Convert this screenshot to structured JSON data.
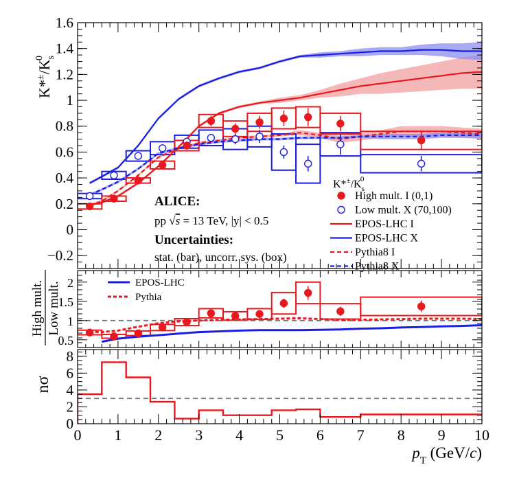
{
  "colors": {
    "red": "#e8191e",
    "blue": "#1a1ee0",
    "red_band": "#f2a0a0",
    "blue_band": "#8c8cf0",
    "dashed_ref": "#777777"
  },
  "chart_data": [
    {
      "type": "scatter",
      "panel": "top",
      "ylabel_main": "K*",
      "ylabel_sup": "±",
      "ylabel_slash": "/K",
      "ylabel_sub": "s",
      "ylabel_sup2": "0",
      "xlim": [
        0,
        10
      ],
      "ylim": [
        -0.3,
        1.6
      ],
      "y_ticks": [
        -0.2,
        0,
        0.2,
        0.4,
        0.6,
        0.8,
        1,
        1.2,
        1.4,
        1.6
      ],
      "y_tick_labels": [
        "−0.2",
        "0",
        "0.2",
        "0.4",
        "0.6",
        "0.8",
        "1",
        "1.2",
        "1.4",
        "1.6"
      ],
      "annotations": {
        "alice": "ALICE:",
        "energy_prefix": "pp ",
        "energy_s": "s",
        "energy_suffix": " = 13 TeV, |y| < 0.5",
        "uncert_title": "Uncertainties:",
        "uncert_text": "stat. (bar), uncorr. sys. (box)"
      },
      "legend": {
        "position": "center-right",
        "header_main": "K*",
        "header_sup": "±",
        "header_slash": "/K",
        "header_sub": "s",
        "header_sup2": "0",
        "entries": [
          {
            "label": "High mult. I (0,1)",
            "kind": "marker-filled",
            "color": "red"
          },
          {
            "label": "Low mult. X (70,100)",
            "kind": "marker-open",
            "color": "blue"
          },
          {
            "label": "EPOS-LHC I",
            "kind": "solid",
            "color": "red"
          },
          {
            "label": "EPOS-LHC X",
            "kind": "solid",
            "color": "blue"
          },
          {
            "label": "Pythia8 I",
            "kind": "dashed",
            "color": "red"
          },
          {
            "label": "Pythia8 X",
            "kind": "dashed",
            "color": "blue"
          }
        ]
      },
      "series": [
        {
          "name": "High mult. I (0,1)",
          "color": "red",
          "bins": [
            [
              0,
              0.6
            ],
            [
              0.6,
              1.2
            ],
            [
              1.2,
              1.8
            ],
            [
              1.8,
              2.4
            ],
            [
              2.4,
              3.0
            ],
            [
              3.0,
              3.6
            ],
            [
              3.6,
              4.2
            ],
            [
              4.2,
              4.8
            ],
            [
              4.8,
              5.4
            ],
            [
              5.4,
              6.0
            ],
            [
              6.0,
              7.0
            ],
            [
              7.0,
              10.0
            ]
          ],
          "x": [
            0.3,
            0.9,
            1.5,
            2.1,
            2.7,
            3.3,
            3.9,
            4.5,
            5.1,
            5.7,
            6.5,
            8.5
          ],
          "y": [
            0.18,
            0.24,
            0.38,
            0.5,
            0.65,
            0.84,
            0.78,
            0.83,
            0.86,
            0.87,
            0.82,
            0.69
          ],
          "stat": [
            0.01,
            0.01,
            0.01,
            0.02,
            0.03,
            0.04,
            0.04,
            0.05,
            0.06,
            0.07,
            0.06,
            0.07
          ],
          "sys": [
            0.02,
            0.02,
            0.02,
            0.03,
            0.04,
            0.05,
            0.06,
            0.07,
            0.08,
            0.08,
            0.08,
            0.07
          ]
        },
        {
          "name": "Low mult. X (70,100)",
          "color": "blue",
          "bins": [
            [
              0,
              0.6
            ],
            [
              0.6,
              1.2
            ],
            [
              1.2,
              1.8
            ],
            [
              1.8,
              2.4
            ],
            [
              2.4,
              3.0
            ],
            [
              3.0,
              3.6
            ],
            [
              3.6,
              4.2
            ],
            [
              4.2,
              4.8
            ],
            [
              4.8,
              5.4
            ],
            [
              5.4,
              6.0
            ],
            [
              6.0,
              7.0
            ],
            [
              7.0,
              10.0
            ]
          ],
          "x": [
            0.3,
            0.9,
            1.5,
            2.1,
            2.7,
            3.3,
            3.9,
            4.5,
            5.1,
            5.7,
            6.5,
            8.5
          ],
          "y": [
            0.26,
            0.42,
            0.57,
            0.63,
            0.68,
            0.71,
            0.7,
            0.72,
            0.6,
            0.51,
            0.66,
            0.51
          ],
          "stat": [
            0.01,
            0.02,
            0.02,
            0.02,
            0.03,
            0.03,
            0.04,
            0.05,
            0.05,
            0.06,
            0.08,
            0.06
          ],
          "sys": [
            0.02,
            0.03,
            0.04,
            0.05,
            0.05,
            0.06,
            0.08,
            0.08,
            0.14,
            0.15,
            0.09,
            0.07
          ]
        },
        {
          "name": "EPOS-LHC I",
          "color": "red",
          "style": "solid",
          "x": [
            0.3,
            0.6,
            1.0,
            1.5,
            2.0,
            2.5,
            3.0,
            3.5,
            4.0,
            4.5,
            5.0,
            5.5,
            6.0,
            6.5,
            7.0,
            7.5,
            8.0,
            8.5,
            9.0,
            9.5,
            10.0
          ],
          "y": [
            0.19,
            0.21,
            0.26,
            0.36,
            0.49,
            0.64,
            0.8,
            0.9,
            0.95,
            0.98,
            1.0,
            1.02,
            1.05,
            1.08,
            1.11,
            1.13,
            1.15,
            1.17,
            1.19,
            1.21,
            1.22
          ],
          "band": [
            0.01,
            0.01,
            0.01,
            0.01,
            0.01,
            0.01,
            0.01,
            0.01,
            0.01,
            0.01,
            0.02,
            0.02,
            0.03,
            0.05,
            0.06,
            0.08,
            0.09,
            0.1,
            0.11,
            0.12,
            0.13
          ]
        },
        {
          "name": "EPOS-LHC X",
          "color": "blue",
          "style": "solid",
          "x": [
            0.3,
            0.6,
            1.0,
            1.5,
            2.0,
            2.5,
            3.0,
            3.5,
            4.0,
            4.5,
            5.0,
            5.5,
            6.0,
            6.5,
            7.0,
            7.5,
            8.0,
            8.5,
            9.0,
            9.5,
            10.0
          ],
          "y": [
            0.36,
            0.41,
            0.48,
            0.65,
            0.86,
            1.01,
            1.11,
            1.17,
            1.22,
            1.25,
            1.3,
            1.34,
            1.35,
            1.36,
            1.37,
            1.38,
            1.38,
            1.39,
            1.39,
            1.38,
            1.38
          ],
          "band": [
            0.01,
            0.01,
            0.01,
            0.01,
            0.01,
            0.01,
            0.01,
            0.01,
            0.01,
            0.01,
            0.01,
            0.01,
            0.02,
            0.02,
            0.03,
            0.03,
            0.03,
            0.04,
            0.05,
            0.06,
            0.07
          ]
        },
        {
          "name": "Pythia8 I",
          "color": "red",
          "style": "dashed",
          "x": [
            0.3,
            0.6,
            1.0,
            1.5,
            2.0,
            2.5,
            3.0,
            3.5,
            4.0,
            4.5,
            5.0,
            5.5,
            6.0,
            6.5,
            7.0,
            7.5,
            8.0,
            8.5,
            9.0,
            9.5,
            10.0
          ],
          "y": [
            0.19,
            0.22,
            0.3,
            0.42,
            0.56,
            0.63,
            0.67,
            0.69,
            0.71,
            0.72,
            0.73,
            0.75,
            0.73,
            0.7,
            0.72,
            0.74,
            0.76,
            0.76,
            0.76,
            0.75,
            0.74
          ],
          "band": [
            0.01,
            0.01,
            0.01,
            0.01,
            0.01,
            0.01,
            0.01,
            0.01,
            0.01,
            0.01,
            0.01,
            0.02,
            0.02,
            0.03,
            0.03,
            0.03,
            0.04,
            0.04,
            0.04,
            0.04,
            0.04
          ]
        },
        {
          "name": "Pythia8 X",
          "color": "blue",
          "style": "dashed",
          "x": [
            0.3,
            0.6,
            1.0,
            1.5,
            2.0,
            2.5,
            3.0,
            3.5,
            4.0,
            4.5,
            5.0,
            5.5,
            6.0,
            6.5,
            7.0,
            7.5,
            8.0,
            8.5,
            9.0,
            9.5,
            10.0
          ],
          "y": [
            0.27,
            0.31,
            0.37,
            0.47,
            0.59,
            0.63,
            0.66,
            0.68,
            0.69,
            0.7,
            0.7,
            0.71,
            0.71,
            0.71,
            0.72,
            0.72,
            0.72,
            0.72,
            0.73,
            0.73,
            0.73
          ],
          "band": [
            0.01,
            0.01,
            0.01,
            0.01,
            0.01,
            0.01,
            0.01,
            0.01,
            0.01,
            0.01,
            0.01,
            0.01,
            0.01,
            0.01,
            0.01,
            0.02,
            0.02,
            0.02,
            0.02,
            0.02,
            0.02
          ]
        }
      ]
    },
    {
      "type": "scatter",
      "panel": "middle",
      "ylabel_top": "High mult.",
      "ylabel_bottom": "Low mult.",
      "xlim": [
        0,
        10
      ],
      "ylim": [
        0.3,
        2.3
      ],
      "y_ticks": [
        0.5,
        1,
        1.5,
        2
      ],
      "y_tick_labels": [
        "0.5",
        "1",
        "1.5",
        "2"
      ],
      "reference_line": 1,
      "legend": {
        "position": "top-left",
        "entries": [
          {
            "label": "EPOS-LHC",
            "kind": "solid",
            "color": "blue"
          },
          {
            "label": "Pythia",
            "kind": "dashed",
            "color": "red"
          }
        ]
      },
      "series": [
        {
          "name": "Data ratio",
          "color": "red",
          "bins": [
            [
              0,
              0.6
            ],
            [
              0.6,
              1.2
            ],
            [
              1.2,
              1.8
            ],
            [
              1.8,
              2.4
            ],
            [
              2.4,
              3.0
            ],
            [
              3.0,
              3.6
            ],
            [
              3.6,
              4.2
            ],
            [
              4.2,
              4.8
            ],
            [
              4.8,
              5.4
            ],
            [
              5.4,
              6.0
            ],
            [
              6.0,
              7.0
            ],
            [
              7.0,
              10.0
            ]
          ],
          "x": [
            0.3,
            0.9,
            1.5,
            2.1,
            2.7,
            3.3,
            3.9,
            4.5,
            5.1,
            5.7,
            6.5,
            8.5
          ],
          "y": [
            0.69,
            0.59,
            0.67,
            0.82,
            0.96,
            1.19,
            1.12,
            1.17,
            1.45,
            1.72,
            1.24,
            1.37
          ],
          "stat": [
            0.02,
            0.02,
            0.02,
            0.03,
            0.04,
            0.06,
            0.07,
            0.08,
            0.12,
            0.18,
            0.12,
            0.15
          ],
          "sys": [
            0.06,
            0.05,
            0.06,
            0.08,
            0.09,
            0.12,
            0.11,
            0.14,
            0.28,
            0.28,
            0.2,
            0.24
          ]
        },
        {
          "name": "EPOS-LHC",
          "color": "blue",
          "style": "solid",
          "x": [
            0.6,
            1.0,
            1.5,
            2.0,
            2.5,
            3.0,
            3.5,
            4.0,
            4.5,
            5.0,
            5.5,
            6.0,
            6.5,
            7.0,
            7.5,
            8.0,
            8.5,
            9.0,
            9.5,
            10.0
          ],
          "y": [
            0.45,
            0.53,
            0.58,
            0.62,
            0.66,
            0.7,
            0.72,
            0.74,
            0.75,
            0.75,
            0.75,
            0.76,
            0.77,
            0.79,
            0.8,
            0.82,
            0.83,
            0.85,
            0.86,
            0.88
          ]
        },
        {
          "name": "Pythia",
          "color": "red",
          "style": "dashed",
          "x": [
            0.3,
            0.6,
            1.0,
            1.5,
            2.0,
            2.5,
            3.0,
            3.5,
            4.0,
            4.5,
            5.0,
            5.5,
            6.0,
            6.5,
            7.0,
            7.5,
            8.0,
            8.5,
            9.0,
            9.5,
            10.0
          ],
          "y": [
            0.71,
            0.7,
            0.74,
            0.84,
            0.93,
            0.98,
            1.0,
            1.02,
            1.03,
            1.04,
            1.05,
            1.06,
            1.04,
            1.02,
            1.02,
            1.03,
            1.04,
            1.05,
            1.05,
            1.05,
            1.04
          ]
        }
      ]
    },
    {
      "type": "bar",
      "panel": "bottom",
      "ylabel_n": "n",
      "ylabel_sigma": "σ",
      "xlim": [
        0,
        10
      ],
      "ylim": [
        0,
        8.8
      ],
      "y_ticks": [
        0,
        2,
        4,
        6,
        8
      ],
      "y_tick_labels": [
        "0",
        "2",
        "4",
        "6",
        "8"
      ],
      "x_ticks": [
        0,
        1,
        2,
        3,
        4,
        5,
        6,
        7,
        8,
        9,
        10
      ],
      "x_tick_labels": [
        "0",
        "1",
        "2",
        "3",
        "4",
        "5",
        "6",
        "7",
        "8",
        "9",
        "10"
      ],
      "xlabel_p": "p",
      "xlabel_sub": "T",
      "xlabel_unit_open": " (GeV/",
      "xlabel_c": "c",
      "xlabel_unit_close": ")",
      "reference_line": 3,
      "bins": [
        [
          0,
          0.6
        ],
        [
          0.6,
          1.2
        ],
        [
          1.2,
          1.8
        ],
        [
          1.8,
          2.4
        ],
        [
          2.4,
          3.0
        ],
        [
          3.0,
          3.6
        ],
        [
          3.6,
          4.2
        ],
        [
          4.2,
          4.8
        ],
        [
          4.8,
          5.4
        ],
        [
          5.4,
          6.0
        ],
        [
          6.0,
          7.0
        ],
        [
          7.0,
          10.0
        ]
      ],
      "values": [
        3.5,
        7.3,
        5.5,
        2.6,
        0.6,
        1.6,
        1.0,
        1.0,
        1.6,
        1.7,
        0.8,
        1.1
      ]
    }
  ]
}
